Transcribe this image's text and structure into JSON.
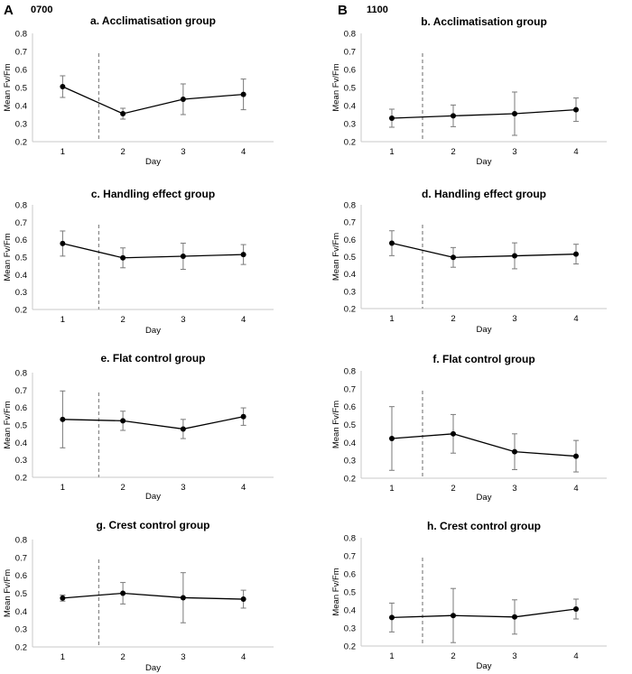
{
  "figure": {
    "column_a": {
      "letter": "A",
      "time": "0700"
    },
    "column_b": {
      "letter": "B",
      "time": "1100"
    }
  },
  "chart_data": [
    {
      "type": "line",
      "title": "a. Acclimatisation group",
      "xlabel": "Day",
      "ylabel": "Mean Fv/Fm",
      "categories": [
        "1",
        "2",
        "3",
        "4"
      ],
      "values": [
        0.505,
        0.355,
        0.435,
        0.462
      ],
      "errors": [
        0.06,
        0.03,
        0.085,
        0.085
      ],
      "ylim": [
        0.2,
        0.8
      ],
      "yticks": [
        "0.2",
        "0.3",
        "0.4",
        "0.5",
        "0.6",
        "0.7",
        "0.8"
      ],
      "reference_line_after_day": 1.6
    },
    {
      "type": "line",
      "title": "b. Acclimatisation group",
      "xlabel": "Day",
      "ylabel": "Mean Fv/Fm",
      "categories": [
        "1",
        "2",
        "3",
        "4"
      ],
      "values": [
        0.33,
        0.343,
        0.355,
        0.377
      ],
      "errors": [
        0.05,
        0.06,
        0.12,
        0.065
      ],
      "ylim": [
        0.2,
        0.8
      ],
      "yticks": [
        "0.2",
        "0.3",
        "0.4",
        "0.5",
        "0.6",
        "0.7",
        "0.8"
      ],
      "reference_line_after_day": 1.5
    },
    {
      "type": "line",
      "title": "c. Handling effect group",
      "xlabel": "Day",
      "ylabel": "Mean Fv/Fm",
      "categories": [
        "1",
        "2",
        "3",
        "4"
      ],
      "values": [
        0.578,
        0.496,
        0.505,
        0.515
      ],
      "errors": [
        0.072,
        0.057,
        0.075,
        0.057
      ],
      "ylim": [
        0.2,
        0.8
      ],
      "yticks": [
        "0.2",
        "0.3",
        "0.4",
        "0.5",
        "0.6",
        "0.7",
        "0.8"
      ],
      "reference_line_after_day": 1.6
    },
    {
      "type": "line",
      "title": "d. Handling effect group",
      "xlabel": "Day",
      "ylabel": "Mean Fv/Fm",
      "categories": [
        "1",
        "2",
        "3",
        "4"
      ],
      "values": [
        0.578,
        0.496,
        0.505,
        0.515
      ],
      "errors": [
        0.072,
        0.057,
        0.075,
        0.057
      ],
      "ylim": [
        0.2,
        0.8
      ],
      "yticks": [
        "0.2",
        "0.3",
        "0.4",
        "0.5",
        "0.6",
        "0.7",
        "0.8"
      ],
      "reference_line_after_day": 1.5
    },
    {
      "type": "line",
      "title": "e. Flat control group",
      "xlabel": "Day",
      "ylabel": "Mean Fv/Fm",
      "categories": [
        "1",
        "2",
        "3",
        "4"
      ],
      "values": [
        0.532,
        0.524,
        0.477,
        0.548
      ],
      "errors": [
        0.163,
        0.055,
        0.055,
        0.05
      ],
      "ylim": [
        0.2,
        0.8
      ],
      "yticks": [
        "0.2",
        "0.3",
        "0.4",
        "0.5",
        "0.6",
        "0.7",
        "0.8"
      ],
      "reference_line_after_day": 1.6
    },
    {
      "type": "line",
      "title": "f. Flat control group",
      "xlabel": "Day",
      "ylabel": "Mean Fv/Fm",
      "categories": [
        "1",
        "2",
        "3",
        "4"
      ],
      "values": [
        0.422,
        0.448,
        0.348,
        0.323
      ],
      "errors": [
        0.178,
        0.108,
        0.1,
        0.088
      ],
      "ylim": [
        0.2,
        0.8
      ],
      "yticks": [
        "0.2",
        "0.3",
        "0.4",
        "0.5",
        "0.6",
        "0.7",
        "0.8"
      ],
      "reference_line_after_day": 1.5
    },
    {
      "type": "line",
      "title": "g. Crest control group",
      "xlabel": "Day",
      "ylabel": "Mean Fv/Fm",
      "categories": [
        "1",
        "2",
        "3",
        "4"
      ],
      "values": [
        0.473,
        0.5,
        0.475,
        0.467
      ],
      "errors": [
        0.017,
        0.06,
        0.14,
        0.05
      ],
      "ylim": [
        0.2,
        0.8
      ],
      "yticks": [
        "0.2",
        "0.3",
        "0.4",
        "0.5",
        "0.6",
        "0.7",
        "0.8"
      ],
      "reference_line_after_day": 1.6
    },
    {
      "type": "line",
      "title": "h. Crest control group",
      "xlabel": "Day",
      "ylabel": "Mean Fv/Fm",
      "categories": [
        "1",
        "2",
        "3",
        "4"
      ],
      "values": [
        0.358,
        0.369,
        0.361,
        0.405
      ],
      "errors": [
        0.08,
        0.15,
        0.095,
        0.055
      ],
      "ylim": [
        0.2,
        0.8
      ],
      "yticks": [
        "0.2",
        "0.3",
        "0.4",
        "0.5",
        "0.6",
        "0.7",
        "0.8"
      ],
      "reference_line_after_day": 1.5
    }
  ]
}
